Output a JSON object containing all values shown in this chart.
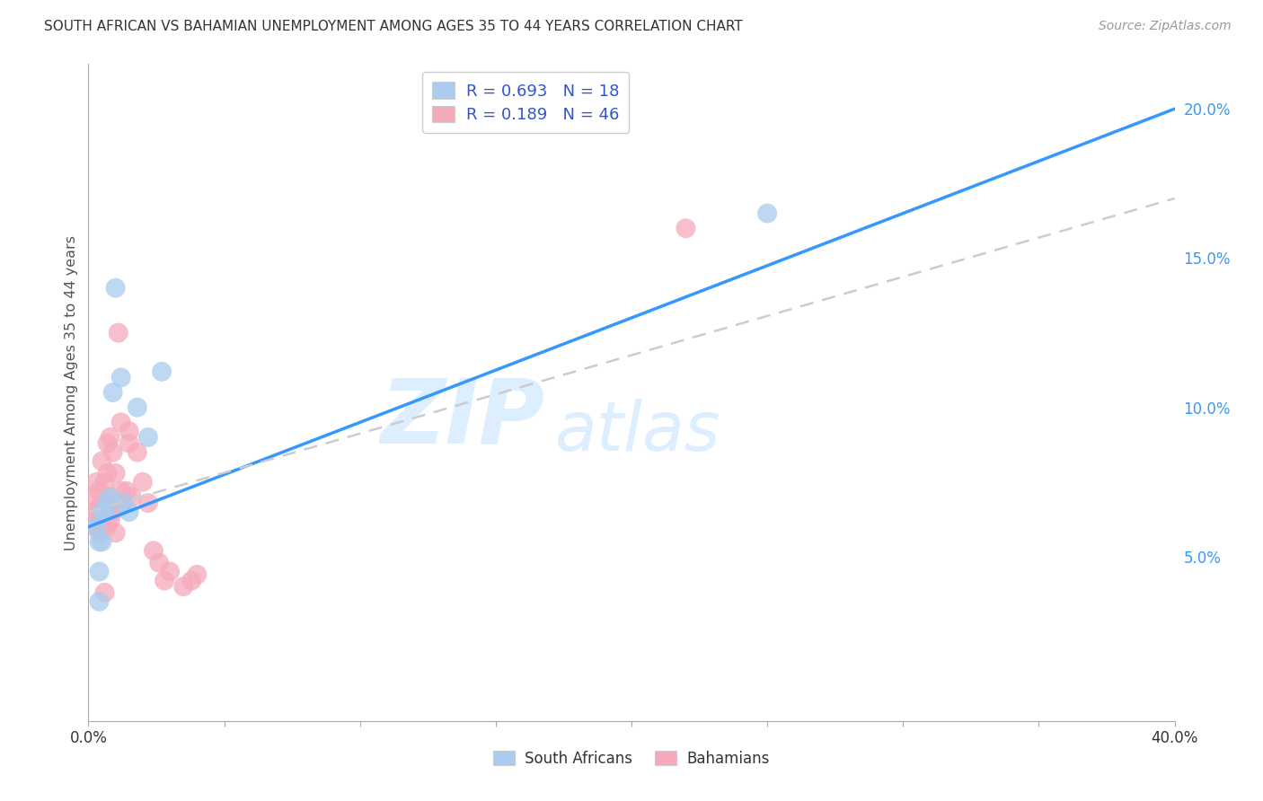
{
  "title": "SOUTH AFRICAN VS BAHAMIAN UNEMPLOYMENT AMONG AGES 35 TO 44 YEARS CORRELATION CHART",
  "source": "Source: ZipAtlas.com",
  "ylabel": "Unemployment Among Ages 35 to 44 years",
  "xlim": [
    0.0,
    0.4
  ],
  "ylim": [
    -0.005,
    0.215
  ],
  "xticks": [
    0.0,
    0.05,
    0.1,
    0.15,
    0.2,
    0.25,
    0.3,
    0.35,
    0.4
  ],
  "yticks_right": [
    0.05,
    0.1,
    0.15,
    0.2
  ],
  "yticklabels_right": [
    "5.0%",
    "10.0%",
    "15.0%",
    "20.0%"
  ],
  "south_africans_x": [
    0.003,
    0.004,
    0.004,
    0.005,
    0.005,
    0.006,
    0.007,
    0.008,
    0.009,
    0.01,
    0.012,
    0.013,
    0.015,
    0.018,
    0.022,
    0.027,
    0.25,
    0.004
  ],
  "south_africans_y": [
    0.06,
    0.055,
    0.045,
    0.065,
    0.055,
    0.065,
    0.068,
    0.07,
    0.105,
    0.14,
    0.11,
    0.068,
    0.065,
    0.1,
    0.09,
    0.112,
    0.165,
    0.035
  ],
  "bahamians_x": [
    0.002,
    0.002,
    0.003,
    0.003,
    0.003,
    0.004,
    0.004,
    0.004,
    0.005,
    0.005,
    0.005,
    0.006,
    0.006,
    0.007,
    0.007,
    0.007,
    0.007,
    0.008,
    0.008,
    0.008,
    0.009,
    0.009,
    0.01,
    0.01,
    0.01,
    0.011,
    0.011,
    0.012,
    0.012,
    0.013,
    0.014,
    0.015,
    0.015,
    0.016,
    0.018,
    0.02,
    0.022,
    0.024,
    0.026,
    0.028,
    0.03,
    0.035,
    0.038,
    0.04,
    0.22,
    0.006
  ],
  "bahamians_y": [
    0.065,
    0.07,
    0.06,
    0.065,
    0.075,
    0.058,
    0.065,
    0.072,
    0.06,
    0.068,
    0.082,
    0.065,
    0.075,
    0.06,
    0.068,
    0.078,
    0.088,
    0.062,
    0.07,
    0.09,
    0.065,
    0.085,
    0.058,
    0.068,
    0.078,
    0.068,
    0.125,
    0.072,
    0.095,
    0.068,
    0.072,
    0.088,
    0.092,
    0.07,
    0.085,
    0.075,
    0.068,
    0.052,
    0.048,
    0.042,
    0.045,
    0.04,
    0.042,
    0.044,
    0.16,
    0.038
  ],
  "sa_R": 0.693,
  "sa_N": 18,
  "bah_R": 0.189,
  "bah_N": 46,
  "sa_line_color": "#3399ff",
  "bah_line_color": "#cccccc",
  "sa_scatter_color": "#aaccee",
  "bah_scatter_color": "#f5aabb",
  "sa_line_start_y": 0.06,
  "sa_line_end_y": 0.2,
  "bah_line_start_y": 0.065,
  "bah_line_end_y": 0.17,
  "watermark_zip": "ZIP",
  "watermark_atlas": "atlas",
  "watermark_color": "#ddeeff",
  "legend_text_color": "#3355cc",
  "title_color": "#333333",
  "source_color": "#999999",
  "ylabel_color": "#555555",
  "grid_color": "#dddddd",
  "tick_label_color_x": "#333333",
  "tick_label_color_right": "#3399ff"
}
